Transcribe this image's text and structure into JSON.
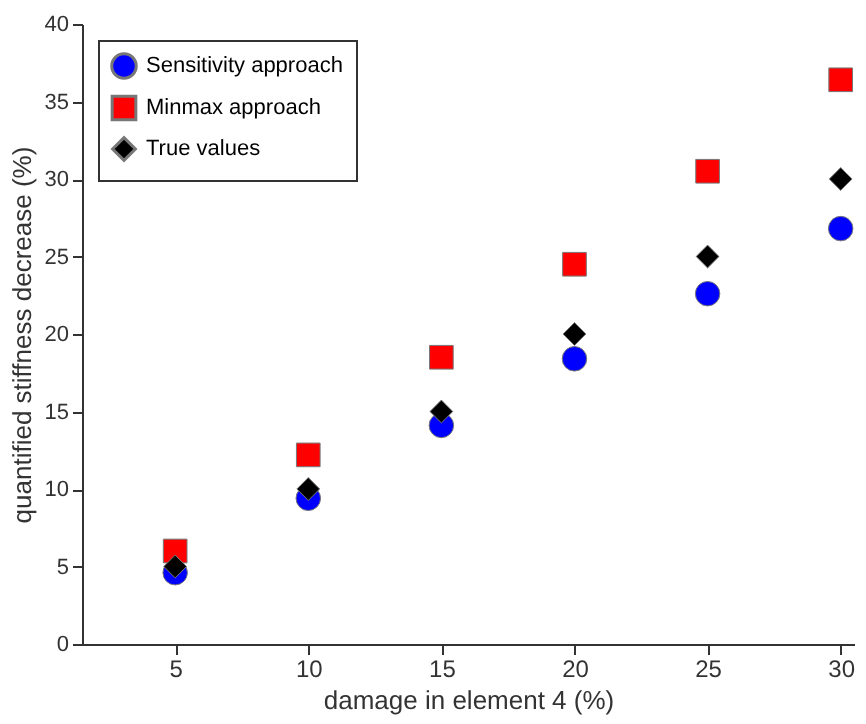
{
  "chart_data": {
    "type": "scatter",
    "xlabel": "damage in element 4 (%)",
    "ylabel": "quantified stiffness decrease (%)",
    "x": [
      5,
      10,
      15,
      20,
      25,
      30
    ],
    "series": [
      {
        "name": "Sensitivity approach",
        "color": "#0000ff",
        "marker": "circle",
        "values": [
          4.6,
          9.4,
          14.1,
          18.4,
          22.6,
          26.8
        ]
      },
      {
        "name": "Minmax approach",
        "color": "#ff0000",
        "marker": "square",
        "values": [
          6.0,
          12.2,
          18.5,
          24.5,
          30.5,
          36.4
        ]
      },
      {
        "name": "True values",
        "color": "#000000",
        "marker": "diamond",
        "values": [
          5,
          10,
          15,
          20,
          25,
          30
        ]
      }
    ],
    "xlim": [
      1.5,
      30.5
    ],
    "xticks": [
      5,
      10,
      15,
      20,
      25,
      30
    ],
    "ylim": [
      0,
      40
    ],
    "yticks": [
      0,
      5,
      10,
      15,
      20,
      25,
      30,
      35,
      40
    ],
    "grid": false,
    "legend": "top left"
  }
}
